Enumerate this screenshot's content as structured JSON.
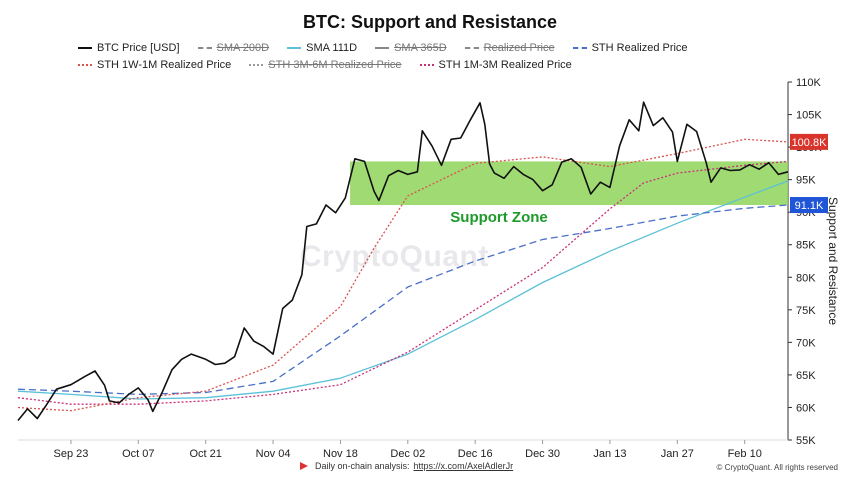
{
  "title": "BTC: Support and Resistance",
  "legend": [
    {
      "label": "BTC Price [USD]",
      "color": "#111111",
      "style": "solid",
      "enabled": true
    },
    {
      "label": "SMA 200D",
      "color": "#888888",
      "style": "dashed",
      "enabled": false
    },
    {
      "label": "SMA 111D",
      "color": "#5bc0d8",
      "style": "solid",
      "enabled": true
    },
    {
      "label": "SMA 365D",
      "color": "#888888",
      "style": "solid",
      "enabled": false
    },
    {
      "label": "Realized Price",
      "color": "#888888",
      "style": "dashed",
      "enabled": false
    },
    {
      "label": "STH Realized Price",
      "color": "#4a6fc8",
      "style": "dashed",
      "enabled": true
    },
    {
      "label": "STH 1W-1M Realized Price",
      "color": "#d9534f",
      "style": "dotted",
      "enabled": true
    },
    {
      "label": "STH 3M-6M Realized Price",
      "color": "#999999",
      "style": "dotted",
      "enabled": false
    },
    {
      "label": "STH 1M-3M Realized Price",
      "color": "#c9307a",
      "style": "dotted",
      "enabled": true
    }
  ],
  "watermark": "CryptoQuant",
  "footer": {
    "prefix": "Daily on-chain analysis: ",
    "link": "https://x.com/AxelAdlerJr",
    "copyright": "© CryptoQuant. All rights reserved"
  },
  "chart_data": {
    "type": "line",
    "ylabel": "Support and Resistance",
    "yticks": [
      "55K",
      "60K",
      "65K",
      "70K",
      "75K",
      "80K",
      "85K",
      "90K",
      "95K",
      "100K",
      "105K",
      "110K"
    ],
    "ylim": [
      55000,
      110000
    ],
    "xlim": [
      "2024-09-12",
      "2025-02-19"
    ],
    "xticks": [
      "Sep 23",
      "Oct 07",
      "Oct 21",
      "Nov 04",
      "Nov 18",
      "Dec 02",
      "Dec 16",
      "Dec 30",
      "Jan 13",
      "Jan 27",
      "Feb 10"
    ],
    "xtick_dates": [
      "2024-09-23",
      "2024-10-07",
      "2024-10-21",
      "2024-11-04",
      "2024-11-18",
      "2024-12-02",
      "2024-12-16",
      "2024-12-30",
      "2025-01-13",
      "2025-01-27",
      "2025-02-10"
    ],
    "support_zone": {
      "label": "Support Zone",
      "from": "2024-11-20",
      "to": "2025-02-19",
      "low": 91100,
      "high": 97800,
      "color": "#8fd45a"
    },
    "value_labels": [
      {
        "text": "100.8K",
        "value": 100800,
        "color": "#d9342b"
      },
      {
        "text": "91.1K",
        "value": 91100,
        "color": "#1f55d6"
      }
    ],
    "series": [
      {
        "name": "BTC Price [USD]",
        "color": "#111111",
        "style": "solid",
        "points": [
          [
            "2024-09-12",
            58000
          ],
          [
            "2024-09-14",
            59800
          ],
          [
            "2024-09-16",
            58300
          ],
          [
            "2024-09-18",
            60500
          ],
          [
            "2024-09-20",
            62800
          ],
          [
            "2024-09-23",
            63500
          ],
          [
            "2024-09-26",
            64800
          ],
          [
            "2024-09-28",
            65600
          ],
          [
            "2024-09-30",
            63400
          ],
          [
            "2024-10-01",
            61000
          ],
          [
            "2024-10-03",
            60700
          ],
          [
            "2024-10-05",
            62000
          ],
          [
            "2024-10-07",
            63000
          ],
          [
            "2024-10-09",
            61200
          ],
          [
            "2024-10-10",
            59400
          ],
          [
            "2024-10-12",
            62400
          ],
          [
            "2024-10-14",
            65800
          ],
          [
            "2024-10-16",
            67400
          ],
          [
            "2024-10-18",
            68200
          ],
          [
            "2024-10-21",
            67400
          ],
          [
            "2024-10-23",
            66600
          ],
          [
            "2024-10-25",
            66800
          ],
          [
            "2024-10-27",
            67800
          ],
          [
            "2024-10-29",
            72200
          ],
          [
            "2024-10-31",
            70200
          ],
          [
            "2024-11-02",
            69400
          ],
          [
            "2024-11-04",
            68200
          ],
          [
            "2024-11-06",
            75200
          ],
          [
            "2024-11-08",
            76500
          ],
          [
            "2024-11-10",
            80400
          ],
          [
            "2024-11-11",
            87800
          ],
          [
            "2024-11-13",
            88200
          ],
          [
            "2024-11-15",
            91100
          ],
          [
            "2024-11-17",
            89900
          ],
          [
            "2024-11-19",
            92200
          ],
          [
            "2024-11-21",
            98200
          ],
          [
            "2024-11-23",
            97800
          ],
          [
            "2024-11-25",
            93200
          ],
          [
            "2024-11-26",
            91800
          ],
          [
            "2024-11-28",
            95600
          ],
          [
            "2024-11-30",
            96400
          ],
          [
            "2024-12-02",
            95800
          ],
          [
            "2024-12-04",
            96200
          ],
          [
            "2024-12-05",
            102500
          ],
          [
            "2024-12-07",
            100200
          ],
          [
            "2024-12-09",
            97200
          ],
          [
            "2024-12-11",
            101200
          ],
          [
            "2024-12-13",
            101400
          ],
          [
            "2024-12-15",
            104200
          ],
          [
            "2024-12-17",
            106800
          ],
          [
            "2024-12-18",
            103500
          ],
          [
            "2024-12-19",
            97400
          ],
          [
            "2024-12-20",
            96000
          ],
          [
            "2024-12-22",
            95200
          ],
          [
            "2024-12-24",
            97000
          ],
          [
            "2024-12-26",
            95800
          ],
          [
            "2024-12-28",
            95000
          ],
          [
            "2024-12-30",
            93300
          ],
          [
            "2025-01-01",
            94200
          ],
          [
            "2025-01-03",
            97700
          ],
          [
            "2025-01-05",
            98200
          ],
          [
            "2025-01-07",
            96900
          ],
          [
            "2025-01-09",
            92800
          ],
          [
            "2025-01-11",
            94600
          ],
          [
            "2025-01-13",
            93800
          ],
          [
            "2025-01-15",
            100200
          ],
          [
            "2025-01-17",
            104200
          ],
          [
            "2025-01-19",
            102500
          ],
          [
            "2025-01-20",
            106900
          ],
          [
            "2025-01-22",
            103300
          ],
          [
            "2025-01-24",
            104500
          ],
          [
            "2025-01-26",
            102300
          ],
          [
            "2025-01-27",
            97800
          ],
          [
            "2025-01-29",
            103500
          ],
          [
            "2025-01-31",
            102400
          ],
          [
            "2025-02-02",
            97600
          ],
          [
            "2025-02-03",
            94600
          ],
          [
            "2025-02-05",
            96800
          ],
          [
            "2025-02-07",
            96400
          ],
          [
            "2025-02-09",
            96500
          ],
          [
            "2025-02-11",
            97300
          ],
          [
            "2025-02-13",
            96600
          ],
          [
            "2025-02-15",
            97600
          ],
          [
            "2025-02-17",
            95800
          ],
          [
            "2025-02-19",
            96200
          ]
        ]
      },
      {
        "name": "SMA 111D",
        "color": "#5bc0d8",
        "style": "solid",
        "points": [
          [
            "2024-09-12",
            62500
          ],
          [
            "2024-09-23",
            62000
          ],
          [
            "2024-10-07",
            61300
          ],
          [
            "2024-10-21",
            61500
          ],
          [
            "2024-11-04",
            62500
          ],
          [
            "2024-11-18",
            64500
          ],
          [
            "2024-12-02",
            68200
          ],
          [
            "2024-12-16",
            73500
          ],
          [
            "2024-12-30",
            79200
          ],
          [
            "2025-01-13",
            84000
          ],
          [
            "2025-01-27",
            88300
          ],
          [
            "2025-02-10",
            92300
          ],
          [
            "2025-02-19",
            94800
          ]
        ]
      },
      {
        "name": "STH Realized Price",
        "color": "#4a6fc8",
        "style": "dashed",
        "points": [
          [
            "2024-09-12",
            62800
          ],
          [
            "2024-09-23",
            62500
          ],
          [
            "2024-10-07",
            62000
          ],
          [
            "2024-10-21",
            62300
          ],
          [
            "2024-11-04",
            64000
          ],
          [
            "2024-11-18",
            71000
          ],
          [
            "2024-12-02",
            78500
          ],
          [
            "2024-12-16",
            82500
          ],
          [
            "2024-12-30",
            85800
          ],
          [
            "2025-01-13",
            87500
          ],
          [
            "2025-01-27",
            89400
          ],
          [
            "2025-02-10",
            90600
          ],
          [
            "2025-02-19",
            91100
          ]
        ]
      },
      {
        "name": "STH 1W-1M Realized Price",
        "color": "#d9534f",
        "style": "dotted",
        "points": [
          [
            "2024-09-12",
            60000
          ],
          [
            "2024-09-23",
            59500
          ],
          [
            "2024-10-07",
            61500
          ],
          [
            "2024-10-21",
            62500
          ],
          [
            "2024-11-04",
            66500
          ],
          [
            "2024-11-18",
            75500
          ],
          [
            "2024-11-25",
            84500
          ],
          [
            "2024-12-02",
            92500
          ],
          [
            "2024-12-16",
            97500
          ],
          [
            "2024-12-30",
            98500
          ],
          [
            "2025-01-13",
            97000
          ],
          [
            "2025-01-27",
            99000
          ],
          [
            "2025-02-10",
            101200
          ],
          [
            "2025-02-19",
            100800
          ]
        ]
      },
      {
        "name": "STH 1M-3M Realized Price",
        "color": "#c9307a",
        "style": "dotted",
        "points": [
          [
            "2024-09-12",
            61500
          ],
          [
            "2024-09-23",
            60500
          ],
          [
            "2024-10-07",
            60500
          ],
          [
            "2024-10-21",
            61000
          ],
          [
            "2024-11-04",
            62000
          ],
          [
            "2024-11-18",
            63500
          ],
          [
            "2024-12-02",
            68500
          ],
          [
            "2024-12-16",
            75000
          ],
          [
            "2024-12-30",
            81500
          ],
          [
            "2025-01-13",
            90500
          ],
          [
            "2025-01-20",
            94500
          ],
          [
            "2025-01-27",
            96000
          ],
          [
            "2025-02-10",
            97200
          ],
          [
            "2025-02-19",
            97800
          ]
        ]
      }
    ]
  }
}
